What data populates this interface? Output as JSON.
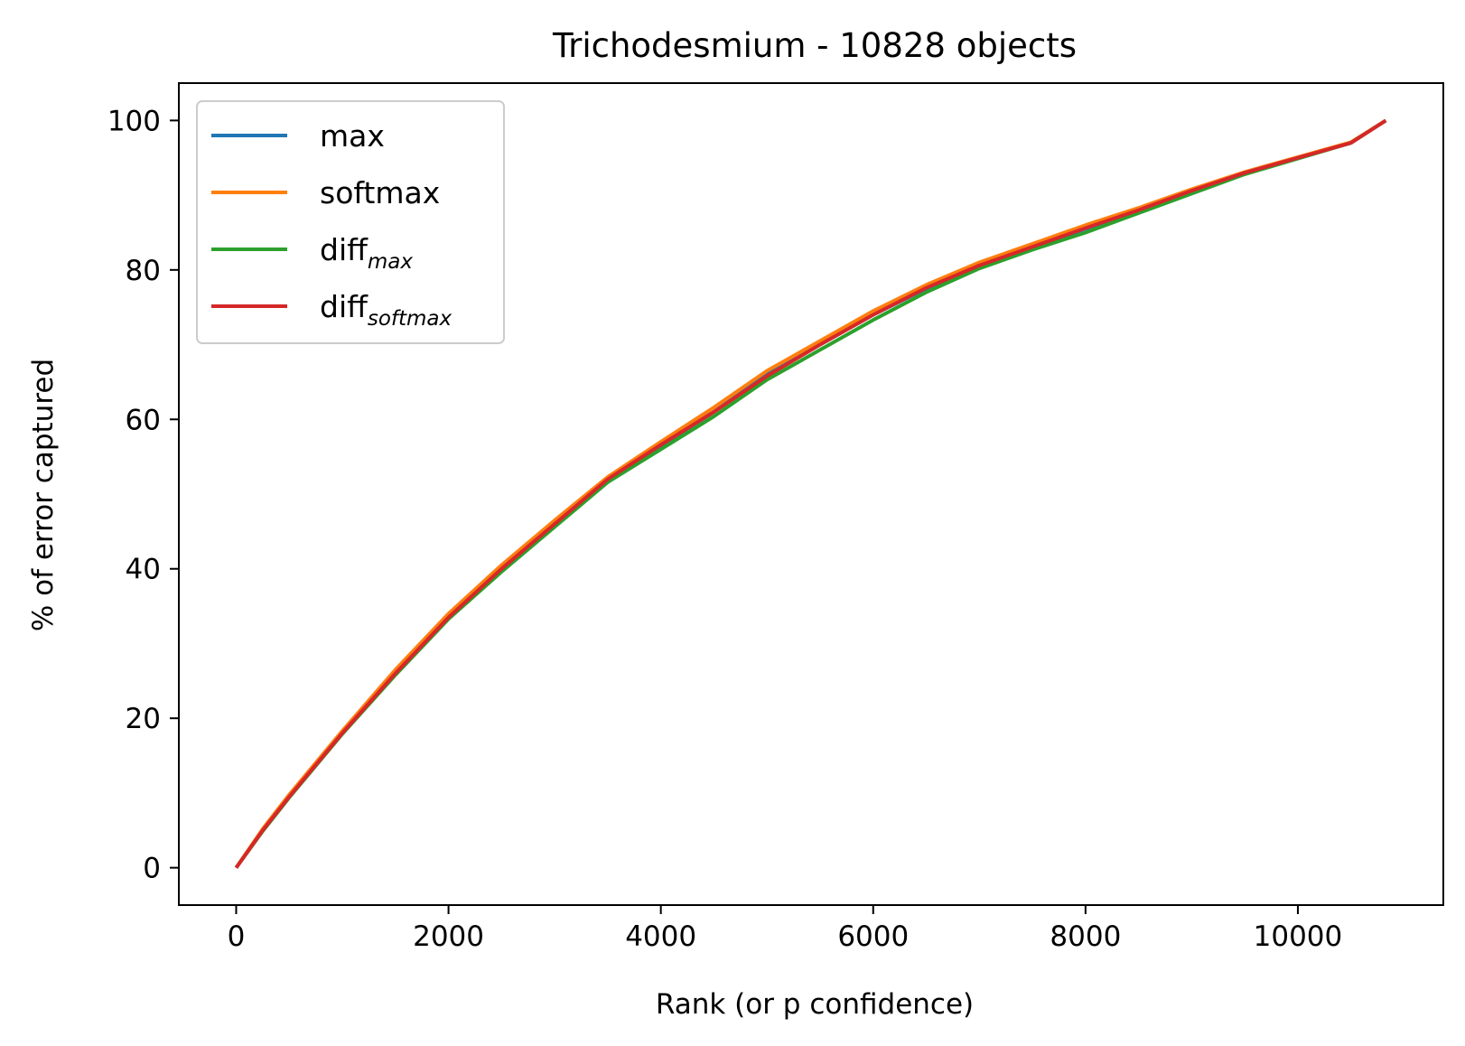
{
  "chart_data": {
    "type": "line",
    "title": "Trichodesmium - 10828 objects",
    "xlabel": "Rank (or p confidence)",
    "ylabel": "% of error captured",
    "xlim": [
      -540,
      11370
    ],
    "ylim": [
      -5,
      105
    ],
    "xticks": [
      0,
      2000,
      4000,
      6000,
      8000,
      10000
    ],
    "yticks": [
      0,
      20,
      40,
      60,
      80,
      100
    ],
    "grid": false,
    "legend_position": "top-left",
    "series": [
      {
        "name": "max",
        "color": "#1f77b4",
        "x": [
          0,
          250,
          500,
          1000,
          1500,
          2000,
          2500,
          3000,
          3500,
          4000,
          4500,
          5000,
          5500,
          6000,
          6500,
          7000,
          7500,
          8000,
          8500,
          9000,
          9500,
          10000,
          10500,
          10828
        ],
        "y": [
          0,
          5,
          9.5,
          18,
          26,
          33.5,
          40,
          46,
          52,
          56.5,
          61,
          66,
          70,
          74,
          77.5,
          80.5,
          83,
          85.5,
          88,
          90.5,
          93,
          95,
          97,
          100
        ]
      },
      {
        "name": "softmax",
        "color": "#ff7f0e",
        "x": [
          0,
          250,
          500,
          1000,
          1500,
          2000,
          2500,
          3000,
          3500,
          4000,
          4500,
          5000,
          5500,
          6000,
          6500,
          7000,
          7500,
          8000,
          8500,
          9000,
          9500,
          10000,
          10500,
          10828
        ],
        "y": [
          0,
          5.2,
          9.8,
          18.3,
          26.5,
          34,
          40.5,
          46.5,
          52.3,
          57,
          61.6,
          66.5,
          70.5,
          74.5,
          78,
          81,
          83.5,
          86,
          88.3,
          90.8,
          93.1,
          95.1,
          97.1,
          100
        ]
      },
      {
        "name": "diff_max",
        "name_base": "diff",
        "name_sub": "max",
        "color": "#2ca02c",
        "x": [
          0,
          250,
          500,
          1000,
          1500,
          2000,
          2500,
          3000,
          3500,
          4000,
          4500,
          5000,
          5500,
          6000,
          6500,
          7000,
          7500,
          8000,
          8500,
          9000,
          9500,
          10000,
          10500,
          10828
        ],
        "y": [
          0,
          4.9,
          9.4,
          17.9,
          25.8,
          33.3,
          39.6,
          45.6,
          51.6,
          56,
          60.4,
          65.3,
          69.3,
          73.3,
          77,
          80.2,
          82.7,
          85,
          87.6,
          90.2,
          92.8,
          94.9,
          97,
          100
        ]
      },
      {
        "name": "diff_softmax",
        "name_base": "diff",
        "name_sub": "softmax",
        "color": "#d62728",
        "x": [
          0,
          250,
          500,
          1000,
          1500,
          2000,
          2500,
          3000,
          3500,
          4000,
          4500,
          5000,
          5500,
          6000,
          6500,
          7000,
          7500,
          8000,
          8500,
          9000,
          9500,
          10000,
          10500,
          10828
        ],
        "y": [
          0,
          5,
          9.5,
          18,
          26,
          33.5,
          40,
          46,
          52,
          56.6,
          61,
          65.8,
          70,
          74,
          77.6,
          80.6,
          83.1,
          85.6,
          88,
          90.6,
          93,
          95,
          97,
          100
        ]
      }
    ]
  }
}
